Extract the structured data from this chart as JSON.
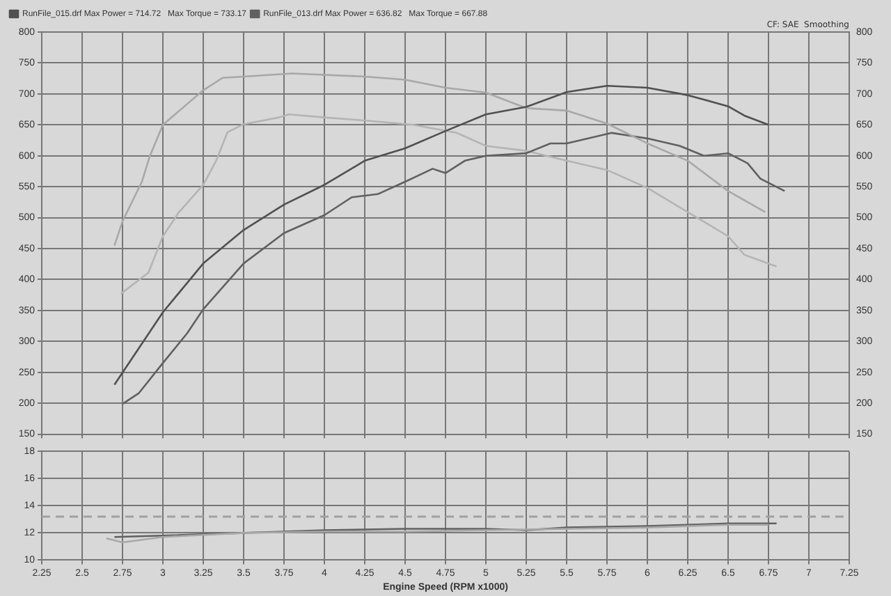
{
  "chart_data": [
    {
      "type": "line",
      "annotations": [
        "CF: SAE  Smoothing"
      ],
      "legend": "top left",
      "grid": true,
      "tick_labels": "y",
      "marker": "none",
      "line_style": "solid",
      "xlim": [
        2.25,
        7.25
      ],
      "xticks": [
        2.25,
        2.5,
        2.75,
        3,
        3.25,
        3.5,
        3.75,
        4,
        4.25,
        4.5,
        4.75,
        5,
        5.25,
        5.5,
        5.75,
        6,
        6.25,
        6.5,
        6.75,
        7,
        7.25
      ],
      "ylim": [
        150,
        800
      ],
      "yticks": [
        150,
        200,
        250,
        300,
        350,
        400,
        450,
        500,
        550,
        600,
        650,
        700,
        750,
        800
      ],
      "y2lim": [
        150,
        800
      ],
      "y2ticks": [
        150,
        200,
        250,
        300,
        350,
        400,
        450,
        500,
        550,
        600,
        650,
        700,
        750,
        800
      ],
      "series": [
        {
          "name": "RunFile_015.drf Max Power = 714.72   Max Torque = 733.17",
          "color": "#505050",
          "x": [
            2.7,
            3,
            3.25,
            3.5,
            3.75,
            4,
            4.25,
            4.5,
            4.75,
            5,
            5.25,
            5.5,
            5.75,
            6,
            6.25,
            6.5,
            6.6,
            6.75
          ],
          "values": [
            230,
            347,
            426,
            480,
            521,
            553,
            592,
            612,
            640,
            667,
            679,
            703,
            713,
            710,
            698,
            680,
            665,
            650
          ]
        },
        {
          "color": "#a8a8a8",
          "x": [
            2.7,
            2.75,
            2.87,
            2.92,
            3,
            3.25,
            3.37,
            3.5,
            3.8,
            4.25,
            4.5,
            4.75,
            5,
            5.25,
            5.5,
            5.75,
            6,
            6.25,
            6.5,
            6.73
          ],
          "values": [
            455,
            494,
            558,
            600,
            650,
            706,
            726,
            728,
            733,
            728,
            723,
            710,
            702,
            677,
            673,
            652,
            620,
            592,
            543,
            509
          ]
        },
        {
          "name": "RunFile_013.drf Max Power = 636.82   Max Torque = 667.88",
          "color": "#606060",
          "x": [
            2.75,
            2.85,
            3,
            3.15,
            3.25,
            3.5,
            3.75,
            4,
            4.17,
            4.33,
            4.5,
            4.67,
            4.75,
            4.87,
            5,
            5.25,
            5.4,
            5.5,
            5.78,
            5.9,
            6,
            6.2,
            6.35,
            6.5,
            6.62,
            6.7,
            6.85
          ],
          "values": [
            199,
            216,
            265,
            313,
            352,
            426,
            475,
            504,
            533,
            538,
            558,
            579,
            572,
            592,
            600,
            604,
            620,
            620,
            637,
            632,
            628,
            616,
            600,
            604,
            588,
            563,
            543
          ]
        },
        {
          "color": "#b4b4b4",
          "x": [
            2.74,
            2.91,
            3,
            3.1,
            3.25,
            3.33,
            3.4,
            3.5,
            3.72,
            3.78,
            4,
            4.25,
            4.55,
            4.82,
            5,
            5.25,
            5.5,
            5.75,
            6,
            6.25,
            6.5,
            6.6,
            6.8
          ],
          "values": [
            377,
            411,
            470,
            509,
            553,
            592,
            638,
            651,
            662,
            667,
            662,
            657,
            650,
            637,
            616,
            608,
            592,
            577,
            548,
            509,
            470,
            440,
            421
          ]
        }
      ]
    },
    {
      "type": "line",
      "xlabel": "Engine Speed (RPM x1000)",
      "grid": true,
      "marker": "none",
      "line_style": "solid",
      "xlim": [
        2.25,
        7.25
      ],
      "xticks": [
        2.25,
        2.5,
        2.75,
        3,
        3.25,
        3.5,
        3.75,
        4,
        4.25,
        4.5,
        4.75,
        5,
        5.25,
        5.5,
        5.75,
        6,
        6.25,
        6.5,
        6.75,
        7,
        7.25
      ],
      "ylim": [
        10,
        18
      ],
      "yticks": [
        10,
        12,
        14,
        16,
        18
      ],
      "ref_lines": [
        {
          "axis": "y",
          "value": 13.2,
          "color": "#a0a0a0",
          "line_style": "dashed"
        }
      ],
      "series": [
        {
          "color": "#a8a8a8",
          "x": [
            2.65,
            2.75,
            3,
            3.5,
            4,
            4.5,
            5,
            5.5,
            6,
            6.5,
            6.75
          ],
          "values": [
            11.6,
            11.3,
            11.7,
            12,
            12.1,
            12.1,
            12.2,
            12.3,
            12.4,
            12.6,
            12.6
          ]
        },
        {
          "color": "#606060",
          "x": [
            2.7,
            3,
            3.5,
            4,
            4.5,
            5,
            5.25,
            5.5,
            6,
            6.5,
            6.8
          ],
          "values": [
            11.7,
            11.8,
            12,
            12.2,
            12.3,
            12.3,
            12.2,
            12.4,
            12.5,
            12.7,
            12.7
          ]
        }
      ]
    }
  ]
}
